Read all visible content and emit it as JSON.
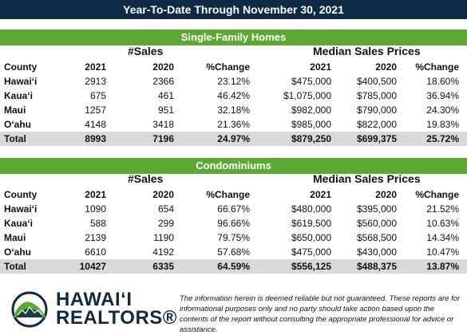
{
  "title": "Year-To-Date Through November 30, 2021",
  "sections": [
    {
      "name": "Single-Family Homes",
      "sales_heading": "#Sales",
      "prices_heading": "Median Sales Prices",
      "columns": [
        "County",
        "2021",
        "2020",
        "%Change",
        "2021",
        "2020",
        "%Change"
      ],
      "rows": [
        [
          "Hawai‘i",
          "2913",
          "2366",
          "23.12%",
          "$475,000",
          "$400,500",
          "18.60%"
        ],
        [
          "Kaua‘i",
          "675",
          "461",
          "46.42%",
          "$1,075,000",
          "$785,000",
          "36.94%"
        ],
        [
          "Maui",
          "1257",
          "951",
          "32.18%",
          "$982,000",
          "$790,000",
          "24.30%"
        ],
        [
          "O‘ahu",
          "4148",
          "3418",
          "21.36%",
          "$985,000",
          "$822,000",
          "19.83%"
        ]
      ],
      "total": [
        "Total",
        "8993",
        "7196",
        "24.97%",
        "$879,250",
        "$699,375",
        "25.72%"
      ]
    },
    {
      "name": "Condominiums",
      "sales_heading": "#Sales",
      "prices_heading": "Median Sales Prices",
      "columns": [
        "County",
        "2021",
        "2020",
        "%Change",
        "2021",
        "2020",
        "%Change"
      ],
      "rows": [
        [
          "Hawai‘i",
          "1090",
          "654",
          "66.67%",
          "$480,000",
          "$395,000",
          "21.52%"
        ],
        [
          "Kaua‘i",
          "588",
          "299",
          "96.66%",
          "$619,500",
          "$560,000",
          "10.63%"
        ],
        [
          "Maui",
          "2139",
          "1190",
          "79.75%",
          "$650,000",
          "$568,500",
          "14.34%"
        ],
        [
          "O‘ahu",
          "6610",
          "4192",
          "57.68%",
          "$475,000",
          "$430,000",
          "10.47%"
        ]
      ],
      "total": [
        "Total",
        "10427",
        "6335",
        "64.59%",
        "$556,125",
        "$488,375",
        "13.87%"
      ]
    }
  ],
  "logo": {
    "line1": "HAWAI‘I",
    "line2": "REALTORS®"
  },
  "disclaimer": "The information herein is deemed reliable but not guaranteed. These reports are for informational purposes only and no party should take action based upon the contents of the report without consulting the appropriate professional for advice or assistance.",
  "colors": {
    "title_bar": "#0f2a44",
    "section_bar": "#5ba832",
    "total_row": "#d9d9d9",
    "logo_green": "#5ba832",
    "logo_navy": "#0f2a44"
  }
}
